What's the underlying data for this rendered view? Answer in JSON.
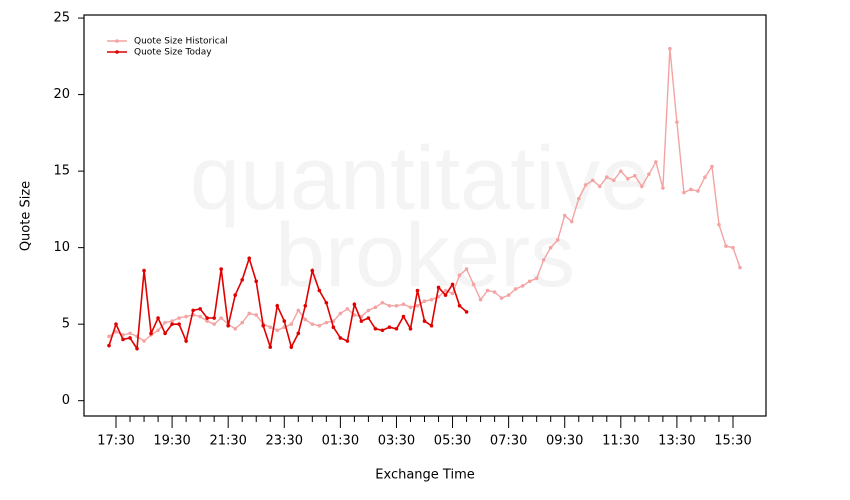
{
  "chart_data": {
    "type": "line",
    "watermark": [
      "quantitative",
      "brokers"
    ],
    "xlabel": "Exchange Time",
    "ylabel": "Quote Size",
    "categories": [
      "17:15",
      "17:30",
      "17:45",
      "18:00",
      "18:15",
      "18:30",
      "18:45",
      "19:00",
      "19:15",
      "19:30",
      "19:45",
      "20:00",
      "20:15",
      "20:30",
      "20:45",
      "21:00",
      "21:15",
      "21:30",
      "21:45",
      "22:00",
      "22:15",
      "22:30",
      "22:45",
      "23:00",
      "23:15",
      "23:30",
      "23:45",
      "00:00",
      "00:15",
      "00:30",
      "00:45",
      "01:00",
      "01:15",
      "01:30",
      "01:45",
      "02:00",
      "02:15",
      "02:30",
      "02:45",
      "03:00",
      "03:15",
      "03:30",
      "03:45",
      "04:00",
      "04:15",
      "04:30",
      "04:45",
      "05:00",
      "05:15",
      "05:30",
      "05:45",
      "06:00",
      "06:15",
      "06:30",
      "06:45",
      "07:00",
      "07:15",
      "07:30",
      "07:45",
      "08:00",
      "08:15",
      "08:30",
      "08:45",
      "09:00",
      "09:15",
      "09:30",
      "09:45",
      "10:00",
      "10:15",
      "10:30",
      "10:45",
      "11:00",
      "11:15",
      "11:30",
      "11:45",
      "12:00",
      "12:15",
      "12:30",
      "12:45",
      "13:00",
      "13:15",
      "13:30",
      "13:45",
      "14:00",
      "14:15",
      "14:30",
      "14:45",
      "15:00",
      "15:15",
      "15:30",
      "15:45"
    ],
    "xticks": [
      "17:30",
      "19:30",
      "21:30",
      "23:30",
      "01:30",
      "03:30",
      "05:30",
      "07:30",
      "09:30",
      "11:30",
      "13:30",
      "15:30"
    ],
    "series": [
      {
        "name": "Quote Size Historical",
        "color": "#f4a3a3",
        "values": [
          4.2,
          4.5,
          4.3,
          4.4,
          4.2,
          3.9,
          4.3,
          4.6,
          5.1,
          5.2,
          5.4,
          5.5,
          5.6,
          5.5,
          5.2,
          5.0,
          5.4,
          5.0,
          4.7,
          5.1,
          5.7,
          5.6,
          5.0,
          4.8,
          4.6,
          4.8,
          5.0,
          5.9,
          5.3,
          5.0,
          4.9,
          5.1,
          5.2,
          5.7,
          6.0,
          5.6,
          5.5,
          5.9,
          6.1,
          6.4,
          6.2,
          6.2,
          6.3,
          6.1,
          6.2,
          6.5,
          6.6,
          6.8,
          7.2,
          7.0,
          8.2,
          8.6,
          7.6,
          6.6,
          7.2,
          7.1,
          6.7,
          6.9,
          7.3,
          7.5,
          7.8,
          8.0,
          9.2,
          10.0,
          10.5,
          12.1,
          11.7,
          13.2,
          14.1,
          14.4,
          14.0,
          14.6,
          14.4,
          15.0,
          14.5,
          14.7,
          14.0,
          14.8,
          15.6,
          13.9,
          23.0,
          18.2,
          13.6,
          13.8,
          13.7,
          14.6,
          15.3,
          11.5,
          10.1,
          10.0,
          8.7
        ]
      },
      {
        "name": "Quote Size Today",
        "color": "#e00000",
        "values": [
          3.6,
          5.0,
          4.0,
          4.1,
          3.4,
          8.5,
          4.4,
          5.4,
          4.4,
          5.0,
          5.0,
          3.9,
          5.9,
          6.0,
          5.4,
          5.4,
          8.6,
          4.9,
          6.9,
          7.9,
          9.3,
          7.8,
          4.9,
          3.5,
          6.2,
          5.2,
          3.5,
          4.4,
          6.2,
          8.5,
          7.2,
          6.4,
          4.8,
          4.1,
          3.9,
          6.3,
          5.2,
          5.4,
          4.7,
          4.6,
          4.8,
          4.7,
          5.5,
          4.7,
          7.2,
          5.2,
          4.9,
          7.4,
          6.9,
          7.6,
          6.2,
          5.8,
          null,
          null,
          null,
          null,
          null,
          null,
          null,
          null,
          null,
          null,
          null,
          null,
          null,
          null,
          null,
          null,
          null,
          null,
          null,
          null,
          null,
          null,
          null,
          null,
          null,
          null,
          null,
          null,
          null,
          null,
          null,
          null,
          null,
          null,
          null,
          null,
          null,
          null,
          null
        ]
      }
    ],
    "ylim": [
      -1,
      25.2
    ],
    "yticks": [
      0,
      5,
      10,
      15,
      20,
      25
    ],
    "legend": "top-left"
  }
}
